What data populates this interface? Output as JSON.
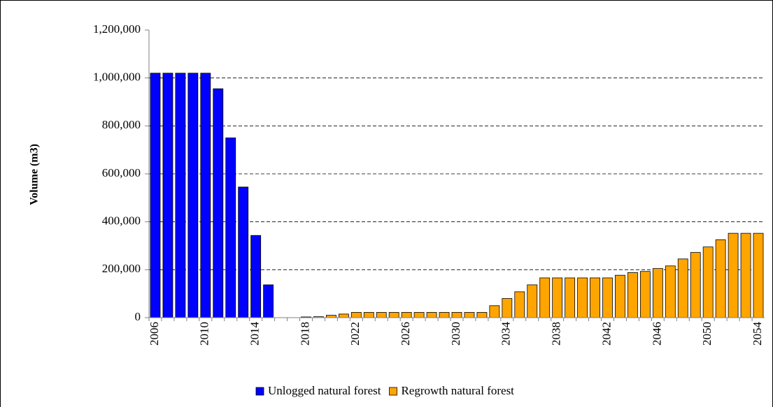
{
  "chart_data": {
    "type": "bar",
    "stacked": false,
    "y_label": "Volume (m3)",
    "categories": [
      "2006",
      null,
      null,
      null,
      "2010",
      null,
      null,
      null,
      "2014",
      null,
      null,
      null,
      "2018",
      null,
      null,
      null,
      "2022",
      null,
      null,
      null,
      "2026",
      null,
      null,
      null,
      "2030",
      null,
      null,
      null,
      "2034",
      null,
      null,
      null,
      "2038",
      null,
      null,
      null,
      "2042",
      null,
      null,
      null,
      "2046",
      null,
      null,
      null,
      "2050",
      null,
      null,
      null,
      "2054"
    ],
    "series": [
      {
        "name": "Unlogged natural forest",
        "color": "#0000ff",
        "values": [
          1020000,
          1020000,
          1020000,
          1020000,
          1020000,
          955000,
          750000,
          545000,
          343000,
          137000,
          null,
          null,
          null,
          null,
          null,
          null,
          null,
          null,
          null,
          null,
          null,
          null,
          null,
          null,
          null,
          null,
          null,
          null,
          null,
          null,
          null,
          null,
          null,
          null,
          null,
          null,
          null,
          null,
          null,
          null,
          null,
          null,
          null,
          null,
          null,
          null,
          null,
          null,
          null
        ]
      },
      {
        "name": "Regrowth natural forest",
        "color": "#ffa500",
        "values": [
          null,
          null,
          null,
          null,
          null,
          null,
          null,
          null,
          null,
          null,
          null,
          null,
          3000,
          4000,
          10000,
          15000,
          22000,
          22000,
          22000,
          22000,
          22000,
          22000,
          22000,
          22000,
          22000,
          22000,
          22000,
          50000,
          80000,
          108000,
          137000,
          166000,
          166000,
          166000,
          166000,
          166000,
          166000,
          177000,
          188000,
          193000,
          205000,
          216000,
          245000,
          272000,
          295000,
          325000,
          352000,
          352000,
          352000
        ]
      }
    ],
    "ylim": [
      0,
      1200000
    ],
    "yticks": [
      0,
      {
        "value": 200000,
        "label": "200,000"
      },
      {
        "value": 400000,
        "label": "400,000"
      },
      {
        "value": 600000,
        "label": "600,000"
      },
      {
        "value": 800000,
        "label": "800,000"
      },
      {
        "value": 1000000,
        "label": "1,000,000"
      },
      {
        "value": 1200000,
        "label": "1,200,000"
      }
    ],
    "grid": true,
    "legend": "bottom"
  }
}
